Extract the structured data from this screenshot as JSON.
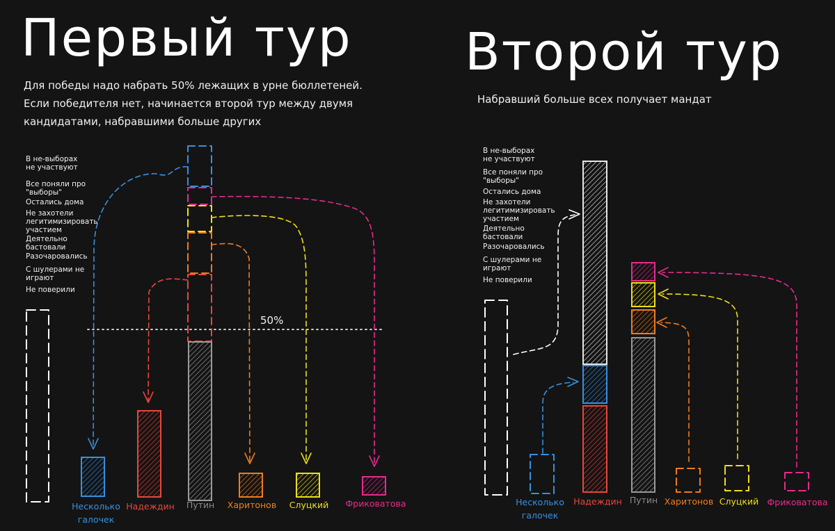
{
  "round1": {
    "title": "Первый тур",
    "description": "Для победы надо набрать 50% лежащих в урне бюллетеней. Если победителя нет, начинается второй тур между двумя кандидатами, набравшими больше других",
    "threshold_label": "50%",
    "reasons": [
      "В не-выборах\nне участвуют",
      "Все поняли про\n\"выборы\"",
      "Остались дома",
      "Не захотели\nлегитимизировать\nучастием",
      "Деятельно\nбастовали",
      "Разочаровались",
      "С шулерами не\nиграют",
      "Не поверили"
    ]
  },
  "round2": {
    "title": "Второй тур",
    "description": "Набравший больше всех получает мандат",
    "reasons": [
      "В не-выборах\nне участвуют",
      "Все поняли про\n\"выборы\"",
      "Остались дома",
      "Не захотели\nлегитимизировать\nучастием",
      "Деятельно\nбастовали",
      "Разочаровались",
      "С шулерами не\nиграют",
      "Не поверили"
    ]
  },
  "candidates": [
    {
      "key": "multi",
      "name": "Несколько\nгалочек",
      "color": "#3a8fe0"
    },
    {
      "key": "nadezhdin",
      "name": "Надеждин",
      "color": "#e8473c"
    },
    {
      "key": "putin",
      "name": "Путин",
      "color": "#8a8a8a"
    },
    {
      "key": "kharitonov",
      "name": "Харитонов",
      "color": "#f07d1e"
    },
    {
      "key": "slutsky",
      "name": "Слуцкий",
      "color": "#f0e019"
    },
    {
      "key": "frikovatova",
      "name": "Фриковатова",
      "color": "#e82b8c"
    }
  ],
  "colors": {
    "background": "#141414",
    "abstain": "#ffffff"
  }
}
